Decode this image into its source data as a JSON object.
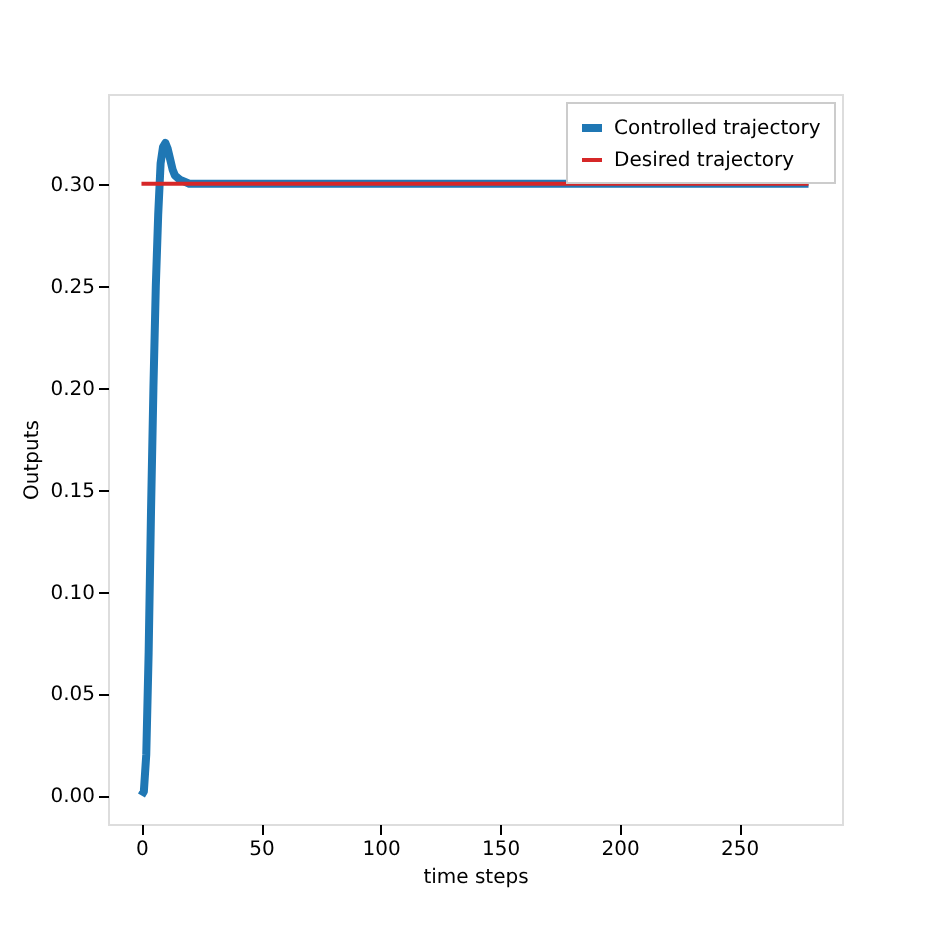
{
  "chart_data": {
    "type": "line",
    "xlabel": "time steps",
    "ylabel": "Outputs",
    "series": [
      {
        "name": "Controlled trajectory",
        "color": "#1f77b4",
        "x": [
          0,
          1,
          2,
          3,
          4,
          5,
          6,
          7,
          8,
          9,
          10,
          11,
          12,
          13,
          14,
          16,
          18,
          20,
          24,
          30,
          279
        ],
        "values": [
          0,
          0.002,
          0.02,
          0.07,
          0.14,
          0.2,
          0.25,
          0.285,
          0.31,
          0.318,
          0.32,
          0.317,
          0.312,
          0.307,
          0.304,
          0.302,
          0.301,
          0.3,
          0.3,
          0.3,
          0.3
        ]
      },
      {
        "name": "Desired trajectory",
        "color": "#d62728",
        "x": [
          0,
          279
        ],
        "values": [
          0.3,
          0.3
        ]
      }
    ],
    "xlim": [
      -14,
      293
    ],
    "ylim": [
      -0.014,
      0.344
    ],
    "xticks": [
      0,
      50,
      100,
      150,
      200,
      250
    ],
    "yticks": [
      {
        "value": 0,
        "label": "0.00"
      },
      {
        "value": 0.05,
        "label": "0.05"
      },
      {
        "value": 0.1,
        "label": "0.10"
      },
      {
        "value": 0.15,
        "label": "0.15"
      },
      {
        "value": 0.2,
        "label": "0.20"
      },
      {
        "value": 0.25,
        "label": "0.25"
      },
      {
        "value": 0.3,
        "label": "0.30"
      }
    ],
    "grid": false,
    "legend": "top right",
    "marker": "none",
    "line_style": "solid"
  }
}
